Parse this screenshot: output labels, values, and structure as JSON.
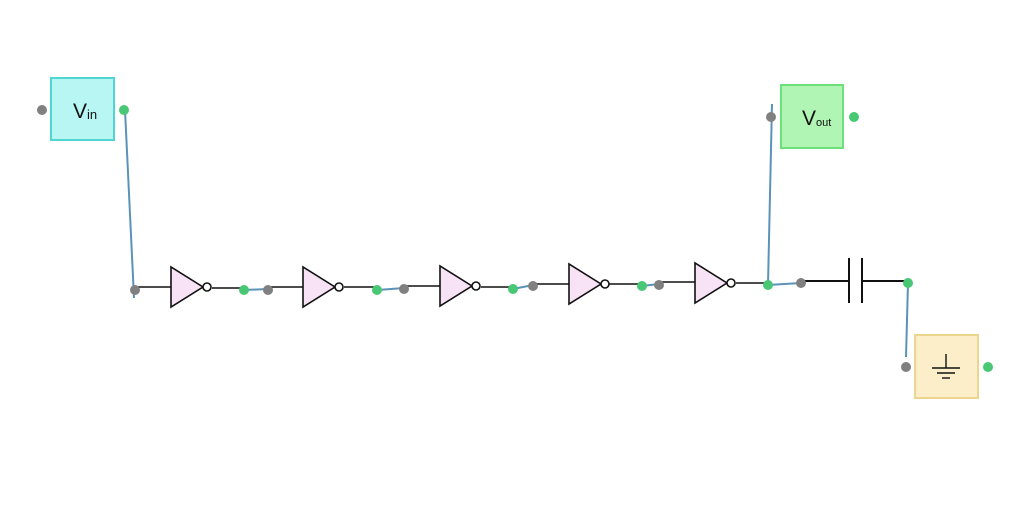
{
  "vin": {
    "main": "V",
    "sub": "in",
    "fill": "#b8f6f4",
    "stroke": "#4fd6d2"
  },
  "vout": {
    "main": "V",
    "sub": "out",
    "fill": "#b0f5b4",
    "stroke": "#6ee07a"
  },
  "ground": {
    "fill": "#fbeec8",
    "stroke": "#ecd58f"
  },
  "inverter_count": 5,
  "colors": {
    "wire": "#5b93b8",
    "line": "#111111",
    "port_output": "#48c774",
    "port_input": "#808080",
    "inverter_fill": "#f7e3f5"
  }
}
